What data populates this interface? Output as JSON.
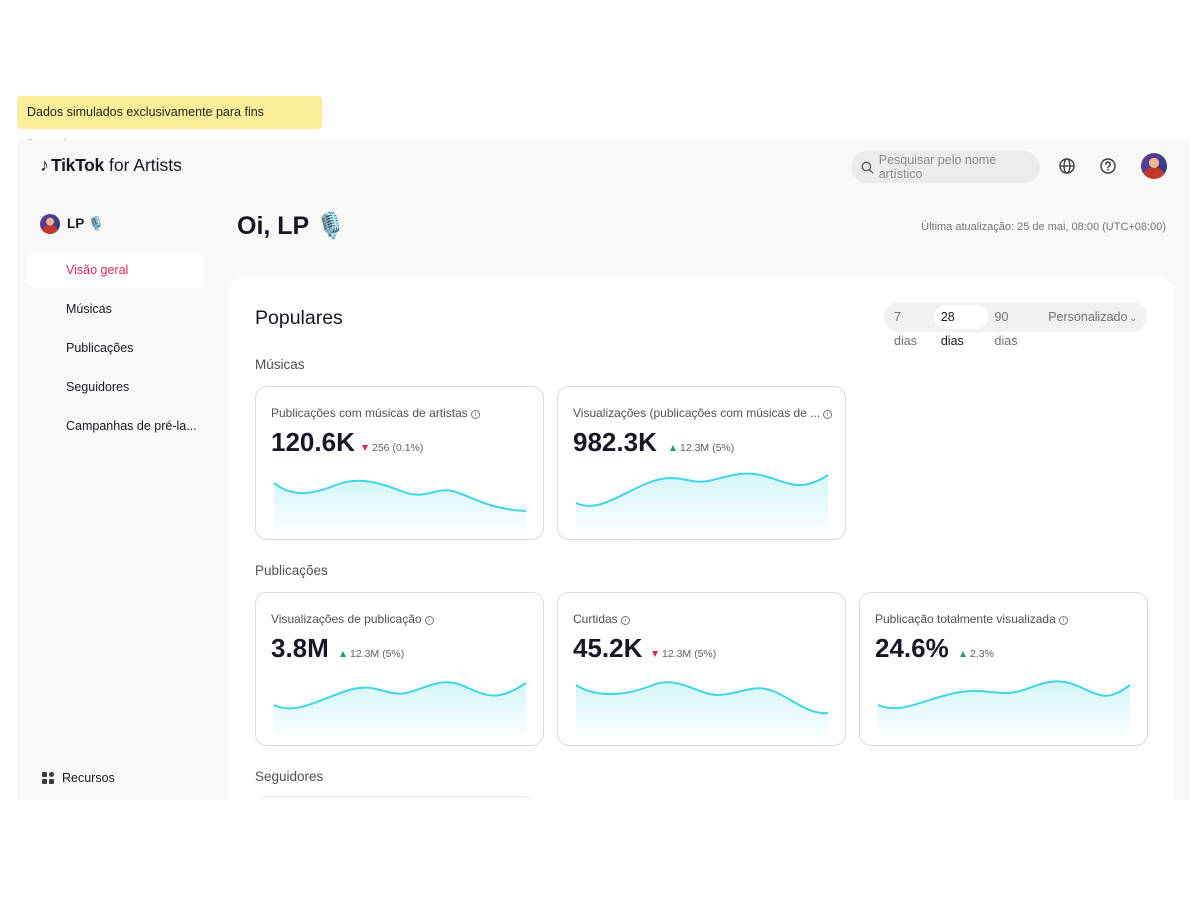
{
  "disclaimer": "Dados simulados exclusivamente para fins ilustrativos.",
  "header": {
    "logo_brand": "TikTok",
    "logo_suffix": "for Artists",
    "search_placeholder": "Pesquisar pelo nome artístico",
    "icons": [
      "globe-icon",
      "help-icon"
    ]
  },
  "sidebar": {
    "artist_name": "LP 🎙️",
    "items": [
      {
        "label": "Visão geral",
        "active": true
      },
      {
        "label": "Músicas",
        "active": false
      },
      {
        "label": "Publicações",
        "active": false
      },
      {
        "label": "Seguidores",
        "active": false
      },
      {
        "label": "Campanhas de pré-la..."
      }
    ],
    "resources_label": "Recursos"
  },
  "main": {
    "greeting": "Oi, LP",
    "greeting_emoji": "🎙️",
    "last_updated": "Última atualização: 25 de mai, 08:00 (UTC+08:00)"
  },
  "panel": {
    "title": "Populares",
    "ranges": [
      "7 dias",
      "28 dias",
      "90 dias",
      "Personalizado"
    ],
    "active_range": "28 dias",
    "sections": {
      "songs": "Músicas",
      "posts": "Publicações",
      "followers": "Seguidores"
    },
    "cards": [
      {
        "label": "Publicações com músicas de artistas",
        "value": "120.6K",
        "delta": "256 (0.1%)",
        "direction": "down"
      },
      {
        "label": "Visualizações (publicações com músicas de ...",
        "value": "982.3K",
        "delta": "12.3M (5%)",
        "direction": "up"
      },
      {
        "label": "Visualizações de publicação",
        "value": "3.8M",
        "delta": "12.3M (5%)",
        "direction": "up"
      },
      {
        "label": "Curtidas",
        "value": "45.2K",
        "delta": "12.3M (5%)",
        "direction": "down"
      },
      {
        "label": "Publicação totalmente visualizada",
        "value": "24.6%",
        "delta": "2.3%",
        "direction": "up"
      }
    ]
  },
  "colors": {
    "accent": "#e0245e",
    "up": "#1f9d6b",
    "down": "#e0245e",
    "sparkline": "#3fd6e6",
    "disclaimer_bg": "#fcef9c"
  }
}
